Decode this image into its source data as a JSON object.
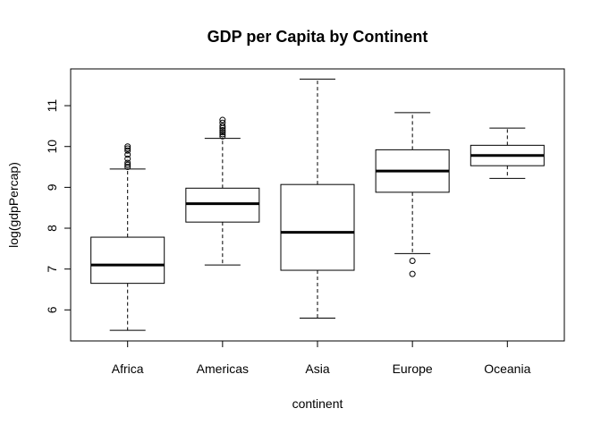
{
  "chart_data": {
    "type": "boxplot",
    "title": "GDP per Capita by Continent",
    "xlabel": "continent",
    "ylabel": "log(gdpPercap)",
    "ylim": [
      5.24,
      11.9
    ],
    "yticks": [
      6,
      7,
      8,
      9,
      10,
      11
    ],
    "grid": false,
    "categories": [
      "Africa",
      "Americas",
      "Asia",
      "Europe",
      "Oceania"
    ],
    "boxes": [
      {
        "category": "Africa",
        "whisker_low": 5.5,
        "q1": 6.65,
        "median": 7.1,
        "q3": 7.78,
        "whisker_high": 9.45,
        "outliers": [
          9.5,
          9.55,
          9.6,
          9.7,
          9.8,
          9.9,
          9.95,
          10.0
        ]
      },
      {
        "category": "Americas",
        "whisker_low": 7.1,
        "q1": 8.15,
        "median": 8.6,
        "q3": 8.98,
        "whisker_high": 10.2,
        "outliers": [
          10.25,
          10.3,
          10.35,
          10.4,
          10.45,
          10.5,
          10.58,
          10.65
        ]
      },
      {
        "category": "Asia",
        "whisker_low": 5.8,
        "q1": 6.97,
        "median": 7.9,
        "q3": 9.07,
        "whisker_high": 11.65,
        "outliers": []
      },
      {
        "category": "Europe",
        "whisker_low": 7.38,
        "q1": 8.88,
        "median": 9.4,
        "q3": 9.92,
        "whisker_high": 10.83,
        "outliers": [
          7.2,
          6.88
        ]
      },
      {
        "category": "Oceania",
        "whisker_low": 9.22,
        "q1": 9.53,
        "median": 9.78,
        "q3": 10.03,
        "whisker_high": 10.45,
        "outliers": []
      }
    ]
  }
}
